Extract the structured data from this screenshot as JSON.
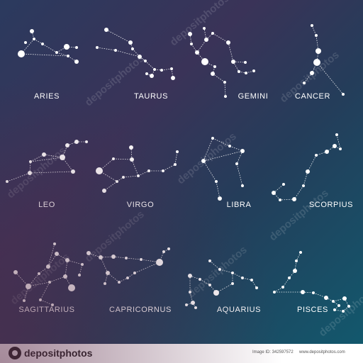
{
  "labels": {
    "aries": "ARIES",
    "taurus": "TAURUS",
    "gemini": "GEMINI",
    "cancer": "CANCER",
    "leo": "LEO",
    "virgo": "VIRGO",
    "libra": "LIBRA",
    "scorpius": "SCORPIUS",
    "sagittarius": "SAGITTARIUS",
    "capricornus": "CAPRICORNUS",
    "aquarius": "AQUARIUS",
    "pisces": "PISCES"
  },
  "watermark": "depositphotos",
  "footer": {
    "logo": "depositphotos",
    "image_id": "Image ID: 342597572",
    "site": "www.depositphotos.com"
  },
  "colors": {
    "star": "#ffffff",
    "line": "#ffffff",
    "footer_bg": "#ffffff"
  }
}
